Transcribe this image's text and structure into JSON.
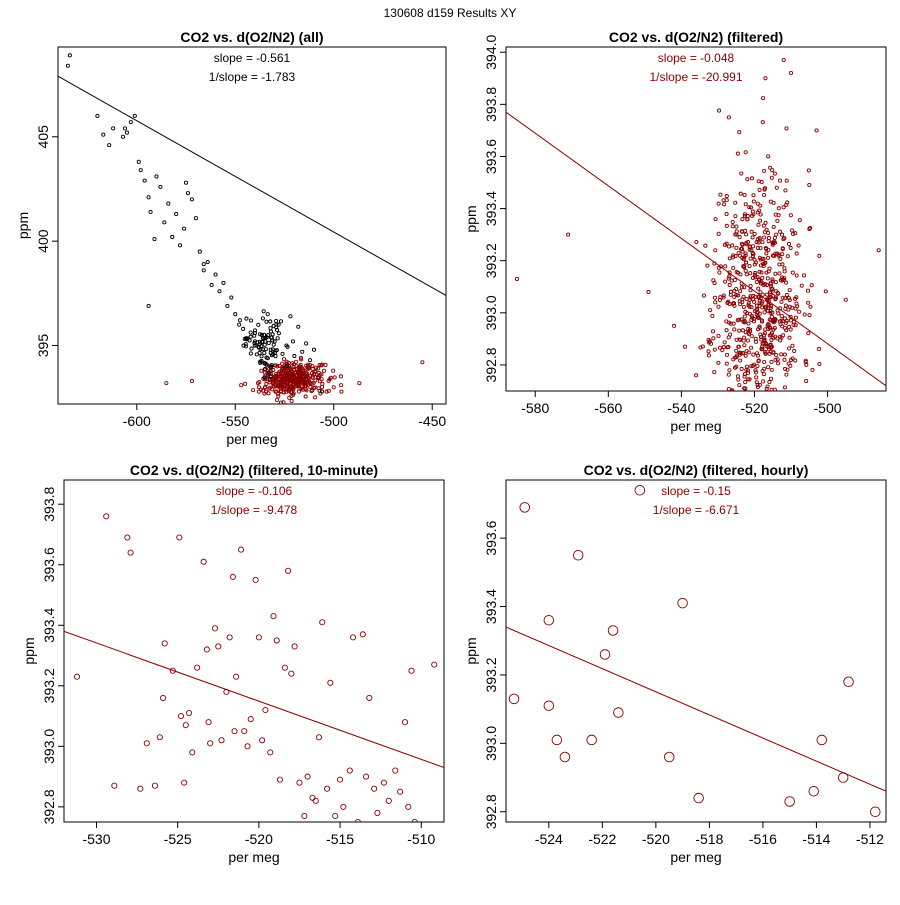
{
  "suptitle": "130608   d159   Results XY",
  "chart_data": [
    {
      "type": "scatter",
      "title": "CO2 vs. d(O2/N2) (all)",
      "xlabel": "per meg",
      "ylabel": "ppm",
      "xlim": [
        -640,
        -443
      ],
      "ylim": [
        392.2,
        409.3
      ],
      "xticks": [
        -600,
        -550,
        -500,
        -450
      ],
      "yticks": [
        395,
        400,
        405
      ],
      "slope_label": "slope = -0.561",
      "inv_slope_label": "1/slope = -1.783",
      "annot_color": "#000000",
      "fit": {
        "slope": -0.561,
        "x1": -640,
        "y1": 407.9,
        "x2": -443,
        "y2": 397.4,
        "color": "#000000"
      },
      "series": [
        {
          "name": "filtered",
          "color": "#8b0000",
          "marker_r": 1.6,
          "cluster": {
            "cx": -521,
            "cy": 393.4,
            "sx": 8,
            "sy": 0.4,
            "n": 380,
            "seed": 7
          },
          "points": [
            [
              -585,
              393.2
            ],
            [
              -572,
              393.3
            ],
            [
              -547,
              393.1
            ],
            [
              -538,
              393.0
            ],
            [
              -500,
              393.0
            ],
            [
              -487,
              393.2
            ],
            [
              -455,
              394.2
            ]
          ]
        },
        {
          "name": "all",
          "color": "#000000",
          "marker_r": 1.6,
          "cluster": {
            "cx": -535,
            "cy": 395.0,
            "sx": 6,
            "sy": 0.7,
            "n": 90,
            "seed": 3
          },
          "points": [
            [
              -635,
              408.4
            ],
            [
              -634,
              408.9
            ],
            [
              -620,
              406.0
            ],
            [
              -617,
              405.1
            ],
            [
              -614,
              404.6
            ],
            [
              -612,
              405.4
            ],
            [
              -607,
              405.0
            ],
            [
              -606,
              405.4
            ],
            [
              -605,
              405.2
            ],
            [
              -603,
              405.7
            ],
            [
              -601,
              406.0
            ],
            [
              -599,
              403.8
            ],
            [
              -598,
              403.4
            ],
            [
              -596,
              402.9
            ],
            [
              -594,
              402.1
            ],
            [
              -593,
              401.4
            ],
            [
              -590,
              403.1
            ],
            [
              -588,
              402.6
            ],
            [
              -586,
              400.9
            ],
            [
              -584,
              401.8
            ],
            [
              -582,
              400.2
            ],
            [
              -580,
              401.3
            ],
            [
              -578,
              399.8
            ],
            [
              -576,
              400.6
            ],
            [
              -574,
              402.3
            ],
            [
              -572,
              402.0
            ],
            [
              -570,
              401.1
            ],
            [
              -568,
              399.5
            ],
            [
              -566,
              398.6
            ],
            [
              -564,
              399.0
            ],
            [
              -562,
              397.9
            ],
            [
              -560,
              398.4
            ],
            [
              -558,
              397.6
            ],
            [
              -556,
              398.0
            ],
            [
              -554,
              396.9
            ],
            [
              -552,
              397.3
            ],
            [
              -550,
              396.5
            ],
            [
              -548,
              396.0
            ],
            [
              -546,
              395.8
            ],
            [
              -544,
              395.3
            ],
            [
              -542,
              396.2
            ],
            [
              -540,
              395.6
            ],
            [
              -538,
              394.9
            ],
            [
              -536,
              396.3
            ],
            [
              -534,
              395.4
            ],
            [
              -532,
              394.8
            ],
            [
              -530,
              395.2
            ],
            [
              -528,
              396.0
            ],
            [
              -526,
              394.6
            ],
            [
              -524,
              395.0
            ],
            [
              -522,
              396.4
            ],
            [
              -520,
              394.5
            ],
            [
              -518,
              395.9
            ],
            [
              -516,
              394.7
            ],
            [
              -514,
              395.1
            ],
            [
              -512,
              394.3
            ],
            [
              -510,
              394.8
            ],
            [
              -594,
              396.9
            ],
            [
              -591,
              400.1
            ],
            [
              -575,
              402.8
            ],
            [
              -566,
              398.9
            ],
            [
              -506,
              392.8
            ]
          ]
        }
      ]
    },
    {
      "type": "scatter",
      "title": "CO2 vs. d(O2/N2) (filtered)",
      "xlabel": "per meg",
      "ylabel": "ppm",
      "xlim": [
        -588,
        -484
      ],
      "ylim": [
        392.7,
        394.02
      ],
      "xticks": [
        -580,
        -560,
        -540,
        -520,
        -500
      ],
      "yticks": [
        392.8,
        393.0,
        393.2,
        393.4,
        393.6,
        393.8,
        394.0
      ],
      "slope_label": "slope = -0.048",
      "inv_slope_label": "1/slope = -20.991",
      "annot_color": "#8b0000",
      "fit": {
        "slope": -0.048,
        "x1": -588,
        "y1": 393.77,
        "x2": -484,
        "y2": 392.72,
        "color": "#8b0000"
      },
      "series": [
        {
          "name": "filtered",
          "color": "#8b0000",
          "marker_r": 1.6,
          "cluster": {
            "cx": -519,
            "cy": 393.05,
            "sx": 6,
            "sy": 0.25,
            "n": 700,
            "seed": 11
          },
          "points": [
            [
              -585,
              393.13
            ],
            [
              -571,
              393.3
            ],
            [
              -549,
              393.08
            ],
            [
              -542,
              392.95
            ],
            [
              -539,
              392.87
            ],
            [
              -527,
              393.75
            ],
            [
              -517,
              393.9
            ],
            [
              -512,
              393.97
            ],
            [
              -510,
              393.92
            ],
            [
              -503,
              393.7
            ],
            [
              -495,
              393.05
            ],
            [
              -486,
              393.24
            ]
          ]
        }
      ]
    },
    {
      "type": "scatter",
      "title": "CO2 vs. d(O2/N2) (filtered, 10-minute)",
      "xlabel": "per meg",
      "ylabel": "ppm",
      "xlim": [
        -532,
        -508.6
      ],
      "ylim": [
        392.75,
        393.88
      ],
      "xticks": [
        -530,
        -525,
        -520,
        -515,
        -510
      ],
      "yticks": [
        392.8,
        393.0,
        393.2,
        393.4,
        393.6,
        393.8
      ],
      "slope_label": "slope = -0.106",
      "inv_slope_label": "1/slope = -9.478",
      "annot_color": "#8b0000",
      "fit": {
        "slope": -0.106,
        "x1": -532,
        "y1": 393.38,
        "x2": -508.6,
        "y2": 392.93,
        "color": "#8b0000"
      },
      "series": [
        {
          "name": "10-minute",
          "color": "#8b0000",
          "marker_r": 2.6,
          "points": [
            [
              -531.2,
              393.23
            ],
            [
              -529.4,
              393.76
            ],
            [
              -528.9,
              392.87
            ],
            [
              -528.1,
              393.69
            ],
            [
              -527.9,
              393.64
            ],
            [
              -527.3,
              392.86
            ],
            [
              -526.9,
              393.01
            ],
            [
              -526.4,
              392.87
            ],
            [
              -526.1,
              393.03
            ],
            [
              -525.9,
              393.16
            ],
            [
              -525.8,
              393.34
            ],
            [
              -525.3,
              393.25
            ],
            [
              -524.9,
              393.69
            ],
            [
              -524.8,
              393.1
            ],
            [
              -524.6,
              392.88
            ],
            [
              -524.5,
              393.07
            ],
            [
              -524.3,
              393.11
            ],
            [
              -524.1,
              392.98
            ],
            [
              -523.8,
              393.26
            ],
            [
              -523.4,
              393.61
            ],
            [
              -523.2,
              393.32
            ],
            [
              -523.1,
              393.08
            ],
            [
              -523.0,
              393.01
            ],
            [
              -522.7,
              393.39
            ],
            [
              -522.5,
              393.33
            ],
            [
              -522.3,
              393.02
            ],
            [
              -522.0,
              393.18
            ],
            [
              -521.8,
              393.36
            ],
            [
              -521.6,
              393.56
            ],
            [
              -521.5,
              393.05
            ],
            [
              -521.4,
              393.23
            ],
            [
              -521.1,
              393.65
            ],
            [
              -520.9,
              393.05
            ],
            [
              -520.7,
              393.0
            ],
            [
              -520.5,
              393.09
            ],
            [
              -520.2,
              393.55
            ],
            [
              -520.0,
              393.36
            ],
            [
              -519.8,
              393.02
            ],
            [
              -519.6,
              393.12
            ],
            [
              -519.3,
              392.98
            ],
            [
              -519.1,
              393.43
            ],
            [
              -518.9,
              393.35
            ],
            [
              -518.7,
              392.89
            ],
            [
              -518.4,
              393.26
            ],
            [
              -518.2,
              393.58
            ],
            [
              -518.0,
              393.24
            ],
            [
              -517.8,
              393.33
            ],
            [
              -517.5,
              392.88
            ],
            [
              -517.2,
              392.77
            ],
            [
              -517.0,
              392.9
            ],
            [
              -516.7,
              392.83
            ],
            [
              -516.5,
              392.82
            ],
            [
              -516.3,
              393.03
            ],
            [
              -516.1,
              393.41
            ],
            [
              -515.8,
              392.86
            ],
            [
              -515.6,
              393.21
            ],
            [
              -515.3,
              392.77
            ],
            [
              -515.0,
              392.89
            ],
            [
              -514.8,
              392.8
            ],
            [
              -514.4,
              392.92
            ],
            [
              -514.2,
              393.36
            ],
            [
              -513.9,
              392.75
            ],
            [
              -513.6,
              393.37
            ],
            [
              -513.4,
              392.9
            ],
            [
              -513.2,
              393.16
            ],
            [
              -512.9,
              392.86
            ],
            [
              -512.7,
              392.78
            ],
            [
              -512.3,
              392.88
            ],
            [
              -512.0,
              392.82
            ],
            [
              -511.6,
              392.92
            ],
            [
              -511.3,
              392.85
            ],
            [
              -511.0,
              393.08
            ],
            [
              -510.8,
              392.8
            ],
            [
              -510.6,
              393.25
            ],
            [
              -510.4,
              392.75
            ],
            [
              -509.2,
              393.27
            ]
          ]
        }
      ]
    },
    {
      "type": "scatter",
      "title": "CO2 vs. d(O2/N2) (filtered, hourly)",
      "xlabel": "per meg",
      "ylabel": "ppm",
      "xlim": [
        -525.6,
        -511.4
      ],
      "ylim": [
        392.77,
        393.77
      ],
      "xticks": [
        -524,
        -522,
        -520,
        -518,
        -516,
        -514,
        -512
      ],
      "yticks": [
        392.8,
        393.0,
        393.2,
        393.4,
        393.6
      ],
      "slope_label": "slope = -0.15",
      "inv_slope_label": "1/slope = -6.671",
      "annot_color": "#8b0000",
      "fit": {
        "slope": -0.15,
        "x1": -525.6,
        "y1": 393.34,
        "x2": -511.4,
        "y2": 392.86,
        "color": "#8b0000"
      },
      "series": [
        {
          "name": "hourly",
          "color": "#8b0000",
          "marker_r": 4.8,
          "points": [
            [
              -525.3,
              393.13
            ],
            [
              -524.9,
              393.69
            ],
            [
              -524.0,
              393.36
            ],
            [
              -524.0,
              393.11
            ],
            [
              -523.7,
              393.01
            ],
            [
              -523.4,
              392.96
            ],
            [
              -522.9,
              393.55
            ],
            [
              -522.4,
              393.01
            ],
            [
              -521.9,
              393.26
            ],
            [
              -521.6,
              393.33
            ],
            [
              -521.4,
              393.09
            ],
            [
              -520.6,
              393.74
            ],
            [
              -519.5,
              392.96
            ],
            [
              -519.0,
              393.41
            ],
            [
              -518.4,
              392.84
            ],
            [
              -515.0,
              392.83
            ],
            [
              -514.1,
              392.86
            ],
            [
              -513.8,
              393.01
            ],
            [
              -513.0,
              392.9
            ],
            [
              -512.8,
              393.18
            ],
            [
              -511.8,
              392.8
            ]
          ]
        }
      ]
    }
  ]
}
